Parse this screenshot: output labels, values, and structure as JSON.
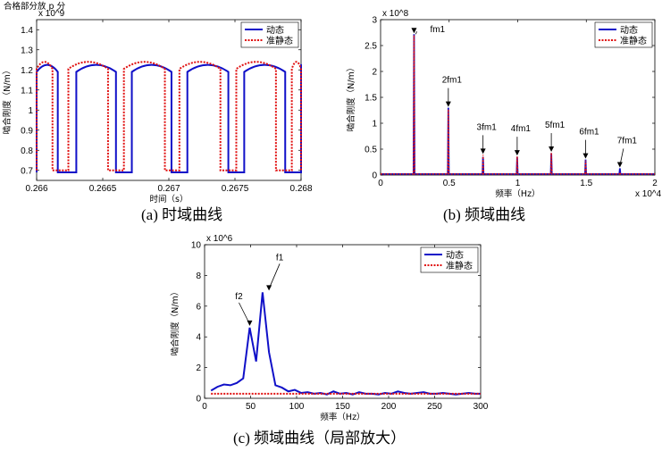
{
  "page_top_text": "合格部分放 p 分",
  "chart_data": [
    {
      "type": "line",
      "caption": "(a)  时域曲线",
      "xlabel": "时间（s）",
      "ylabel": "啮合刚度（N/m）",
      "exponent": "x 10^9",
      "xlim": [
        0.266,
        0.268
      ],
      "ylim": [
        0.65,
        1.45
      ],
      "xticks": [
        "0.266",
        "0.2665",
        "0.267",
        "0.2675",
        "0.268"
      ],
      "yticks": [
        "0.7",
        "0.8",
        "0.9",
        "1",
        "1.1",
        "1.2",
        "1.3",
        "1.4"
      ],
      "legend": [
        "动态",
        "准静态"
      ],
      "legend_position": "top-right",
      "series": [
        {
          "name": "动态",
          "color": "#1010c8",
          "style": "solid",
          "high": 1.23,
          "low": 0.69,
          "high_segments": [
            [
              0.266,
              0.26616
            ],
            [
              0.2663,
              0.2666
            ],
            [
              0.26672,
              0.26702
            ],
            [
              0.26714,
              0.26745
            ],
            [
              0.26757,
              0.26788
            ],
            [
              0.268,
              0.268
            ]
          ],
          "x_range": [
            0.266,
            0.268
          ]
        },
        {
          "name": "准静态",
          "color": "#e01010",
          "style": "dotted",
          "high": 1.245,
          "low": 0.7,
          "high_segments": [
            [
              0.266,
              0.26612
            ],
            [
              0.26624,
              0.26654
            ],
            [
              0.26666,
              0.26697
            ],
            [
              0.26708,
              0.26739
            ],
            [
              0.26751,
              0.26781
            ],
            [
              0.26793,
              0.268
            ]
          ],
          "x_range": [
            0.266,
            0.268
          ]
        }
      ]
    },
    {
      "type": "line",
      "caption": "(b)  频域曲线",
      "xlabel": "频率（Hz）",
      "ylabel": "啮合刚度（N/m）",
      "exponent": "x 10^8",
      "x_exponent": "x 10^4",
      "xlim": [
        0,
        2
      ],
      "ylim": [
        0,
        3
      ],
      "xticks": [
        "0",
        "0.5",
        "1",
        "1.5",
        "2"
      ],
      "yticks": [
        "0",
        "0.5",
        "1",
        "1.5",
        "2",
        "2.5",
        "3"
      ],
      "legend": [
        "动态",
        "准静态"
      ],
      "legend_position": "top-right",
      "series": [
        {
          "name": "动态",
          "color": "#1010c8",
          "peaks_x": [
            0.244,
            0.494,
            0.747,
            0.996,
            1.245,
            1.495,
            1.745
          ],
          "peaks_y": [
            2.72,
            1.3,
            0.35,
            0.35,
            0.42,
            0.3,
            0.13
          ]
        },
        {
          "name": "准静态",
          "color": "#e01010",
          "peaks_x": [
            0.244,
            0.494,
            0.747,
            0.996,
            1.245,
            1.495,
            1.745
          ],
          "peaks_y": [
            2.7,
            1.27,
            0.39,
            0.36,
            0.43,
            0.28,
            0.05
          ]
        }
      ],
      "annotations": [
        {
          "text": "fm1",
          "x": 0.244,
          "y": 2.72
        },
        {
          "text": "2fm1",
          "x": 0.494,
          "y": 1.3
        },
        {
          "text": "3fm1",
          "x": 0.747,
          "y": 0.39
        },
        {
          "text": "4fm1",
          "x": 0.996,
          "y": 0.36
        },
        {
          "text": "5fm1",
          "x": 1.245,
          "y": 0.43
        },
        {
          "text": "6fm1",
          "x": 1.495,
          "y": 0.3
        },
        {
          "text": "7fm1",
          "x": 1.745,
          "y": 0.13
        }
      ]
    },
    {
      "type": "line",
      "caption": "(c)  频域曲线（局部放大）",
      "xlabel": "频率（Hz）",
      "ylabel": "啮合刚度（N/m）",
      "exponent": "x 10^6",
      "xlim": [
        0,
        300
      ],
      "ylim": [
        0,
        10
      ],
      "xticks": [
        "0",
        "50",
        "100",
        "150",
        "200",
        "250",
        "300"
      ],
      "yticks": [
        "0",
        "2",
        "4",
        "6",
        "8",
        "10"
      ],
      "legend": [
        "动态",
        "准静态"
      ],
      "legend_position": "top-right",
      "series": [
        {
          "name": "动态",
          "color": "#1010c8",
          "x": [
            7,
            14,
            21,
            28,
            35,
            42,
            49,
            56,
            63,
            70,
            77,
            84,
            91,
            98,
            105,
            112,
            119,
            126,
            133,
            140,
            147,
            154,
            161,
            168,
            175,
            182,
            189,
            196,
            203,
            210,
            217,
            224,
            231,
            238,
            245,
            252,
            259,
            266,
            273,
            280,
            287,
            294,
            300
          ],
          "y": [
            0.5,
            0.75,
            0.9,
            0.85,
            1.0,
            1.3,
            4.6,
            2.4,
            6.9,
            3.0,
            0.85,
            0.7,
            0.45,
            0.55,
            0.35,
            0.4,
            0.3,
            0.35,
            0.25,
            0.45,
            0.3,
            0.35,
            0.25,
            0.4,
            0.3,
            0.3,
            0.25,
            0.35,
            0.3,
            0.45,
            0.35,
            0.3,
            0.35,
            0.4,
            0.3,
            0.3,
            0.35,
            0.3,
            0.25,
            0.3,
            0.35,
            0.3,
            0.3
          ]
        },
        {
          "name": "准静态",
          "color": "#e01010",
          "x": [
            7,
            300
          ],
          "y": [
            0.3,
            0.3
          ]
        }
      ],
      "annotations": [
        {
          "text": "f2",
          "x": 49,
          "y": 4.6
        },
        {
          "text": "f1",
          "x": 70,
          "y": 6.9
        }
      ]
    }
  ]
}
